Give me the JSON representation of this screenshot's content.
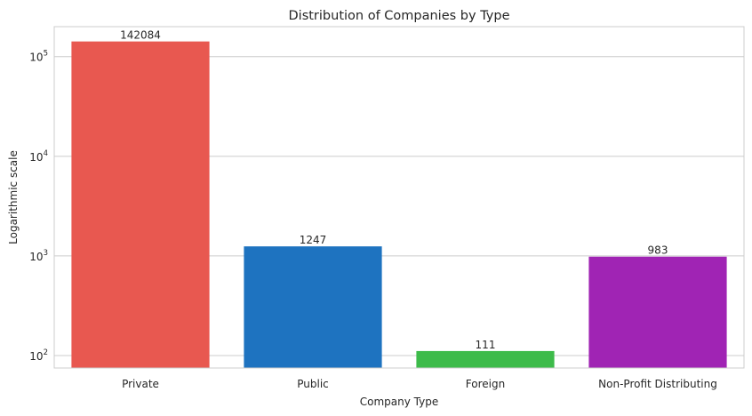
{
  "chart_data": {
    "type": "bar",
    "title": "Distribution of Companies by Type",
    "xlabel": "Company Type",
    "ylabel": "Logarithmic scale",
    "yscale": "log",
    "ylim": [
      75,
      200000
    ],
    "yticks": [
      {
        "value": 100,
        "base": "10",
        "exp": "2"
      },
      {
        "value": 1000,
        "base": "10",
        "exp": "3"
      },
      {
        "value": 10000,
        "base": "10",
        "exp": "4"
      },
      {
        "value": 100000,
        "base": "10",
        "exp": "5"
      }
    ],
    "grid": true,
    "categories": [
      "Private",
      "Public",
      "Foreign",
      "Non-Profit Distributing"
    ],
    "values": [
      142084,
      1247,
      111,
      983
    ],
    "data_labels": [
      "142084",
      "1247",
      "111",
      "983"
    ],
    "colors": [
      "#e85850",
      "#1e73c0",
      "#3dbb4a",
      "#a024b4"
    ]
  }
}
